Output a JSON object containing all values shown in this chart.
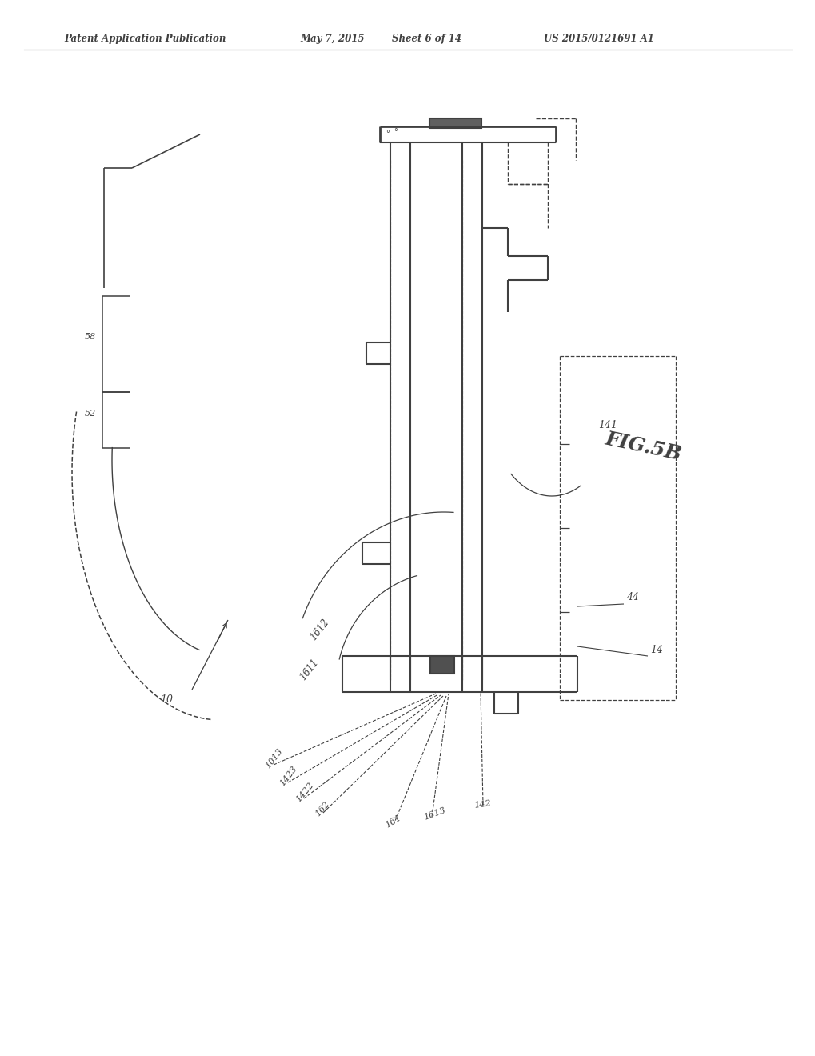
{
  "bg_color": "#ffffff",
  "line_color": "#404040",
  "header_text": "Patent Application Publication",
  "header_date": "May 7, 2015",
  "header_sheet": "Sheet 6 of 14",
  "header_patent": "US 2015/0121691 A1",
  "fig_label": "FIG.5B",
  "title_fontsize": 9,
  "fig_label_fontsize": 18
}
